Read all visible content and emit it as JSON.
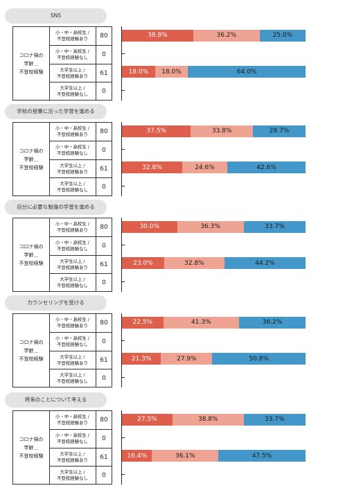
{
  "colors": {
    "s0": "#dd5f4c",
    "s1": "#efa393",
    "s2": "#4397c9"
  },
  "chart_data": [
    {
      "type": "bar",
      "title": "SNS",
      "group_label": "コロナ禍の\n学齢＿\n不登校経験",
      "categories": [
        "小・中・高校生 /\n不登校経験あり",
        "小・中・高校生 /\n不登校経験なし",
        "大学生以上 /\n不登校経験あり",
        "大学生以上 /\n不登校経験なし"
      ],
      "n": [
        "80",
        "0",
        "61",
        "0"
      ],
      "series": [
        {
          "values": [
            38.8,
            null,
            18.0,
            null
          ]
        },
        {
          "values": [
            36.2,
            null,
            18.0,
            null
          ]
        },
        {
          "values": [
            25.0,
            null,
            64.0,
            null
          ]
        }
      ],
      "labels": [
        [
          "38.8%",
          "36.2%",
          "25.0%"
        ],
        [],
        [
          "18.0%",
          "18.0%",
          "64.0%"
        ],
        []
      ],
      "xlim": [
        0,
        100
      ]
    },
    {
      "type": "bar",
      "title": "学校の授業に沿った学習を進める",
      "group_label": "コロナ禍の\n学齢＿\n不登校経験",
      "categories": [
        "小・中・高校生 /\n不登校経験あり",
        "小・中・高校生 /\n不登校経験なし",
        "大学生以上 /\n不登校経験あり",
        "大学生以上 /\n不登校経験なし"
      ],
      "n": [
        "80",
        "0",
        "61",
        "0"
      ],
      "series": [
        {
          "values": [
            37.5,
            null,
            32.8,
            null
          ]
        },
        {
          "values": [
            33.8,
            null,
            24.6,
            null
          ]
        },
        {
          "values": [
            28.7,
            null,
            42.6,
            null
          ]
        }
      ],
      "labels": [
        [
          "37.5%",
          "33.8%",
          "28.7%"
        ],
        [],
        [
          "32.8%",
          "24.6%",
          "42.6%"
        ],
        []
      ],
      "xlim": [
        0,
        100
      ]
    },
    {
      "type": "bar",
      "title": "自分に必要な勉強の学習を進める",
      "group_label": "コロナ禍の\n学齢＿\n不登校経験",
      "categories": [
        "小・中・高校生 /\n不登校経験あり",
        "小・中・高校生 /\n不登校経験なし",
        "大学生以上 /\n不登校経験あり",
        "大学生以上 /\n不登校経験なし"
      ],
      "n": [
        "80",
        "0",
        "61",
        "0"
      ],
      "series": [
        {
          "values": [
            30.0,
            null,
            23.0,
            null
          ]
        },
        {
          "values": [
            36.3,
            null,
            32.8,
            null
          ]
        },
        {
          "values": [
            33.7,
            null,
            44.2,
            null
          ]
        }
      ],
      "labels": [
        [
          "30.0%",
          "36.3%",
          "33.7%"
        ],
        [],
        [
          "23.0%",
          "32.8%",
          "44.2%"
        ],
        []
      ],
      "xlim": [
        0,
        100
      ]
    },
    {
      "type": "bar",
      "title": "カウンセリングを受ける",
      "group_label": "コロナ禍の\n学齢＿\n不登校経験",
      "categories": [
        "小・中・高校生 /\n不登校経験あり",
        "小・中・高校生 /\n不登校経験なし",
        "大学生以上 /\n不登校経験あり",
        "大学生以上 /\n不登校経験なし"
      ],
      "n": [
        "80",
        "0",
        "61",
        "0"
      ],
      "series": [
        {
          "values": [
            22.5,
            null,
            21.3,
            null
          ]
        },
        {
          "values": [
            41.3,
            null,
            27.9,
            null
          ]
        },
        {
          "values": [
            36.2,
            null,
            50.8,
            null
          ]
        }
      ],
      "labels": [
        [
          "22.5%",
          "41.3%",
          "36.2%"
        ],
        [],
        [
          "21.3%",
          "27.9%",
          "50.8%"
        ],
        []
      ],
      "xlim": [
        0,
        100
      ]
    },
    {
      "type": "bar",
      "title": "将来のことについて考える",
      "group_label": "コロナ禍の\n学齢＿\n不登校経験",
      "categories": [
        "小・中・高校生 /\n不登校経験あり",
        "小・中・高校生 /\n不登校経験なし",
        "大学生以上 /\n不登校経験あり",
        "大学生以上 /\n不登校経験なし"
      ],
      "n": [
        "80",
        "0",
        "61",
        "0"
      ],
      "series": [
        {
          "values": [
            27.5,
            null,
            16.4,
            null
          ]
        },
        {
          "values": [
            38.8,
            null,
            36.1,
            null
          ]
        },
        {
          "values": [
            33.7,
            null,
            47.5,
            null
          ]
        }
      ],
      "labels": [
        [
          "27.5%",
          "38.8%",
          "33.7%"
        ],
        [],
        [
          "16.4%",
          "36.1%",
          "47.5%"
        ],
        []
      ],
      "xlim": [
        0,
        100
      ]
    }
  ]
}
